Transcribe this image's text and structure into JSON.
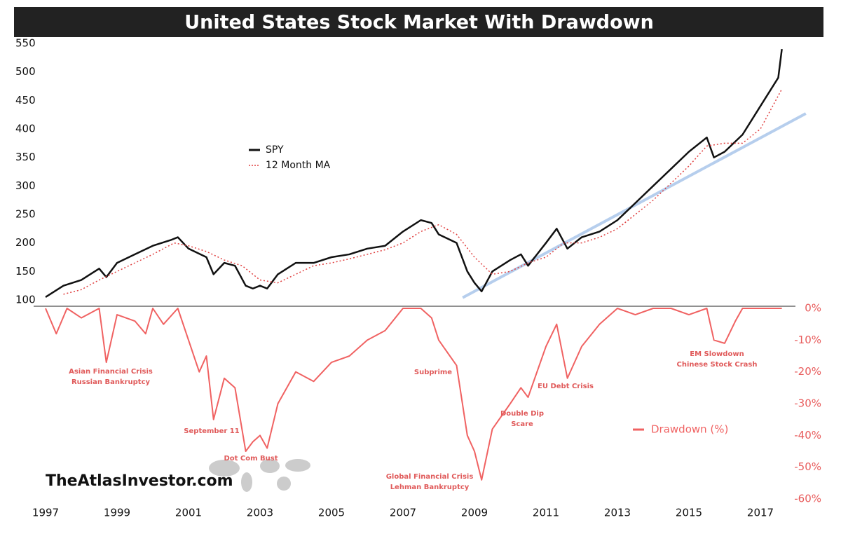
{
  "chart_data": {
    "type": "line",
    "title": "United States Stock Market With Drawdown",
    "xlim": [
      1997,
      2017.7
    ],
    "xticks": [
      1997,
      1999,
      2001,
      2003,
      2005,
      2007,
      2009,
      2011,
      2013,
      2015,
      2017
    ],
    "ylim": [
      100,
      550
    ],
    "yticks": [
      100,
      150,
      200,
      250,
      300,
      350,
      400,
      450,
      500,
      550
    ],
    "y2lim": [
      -60,
      0
    ],
    "y2ticks": [
      {
        "value": 0,
        "label": "0%"
      },
      {
        "value": -10,
        "label": "-10%"
      },
      {
        "value": -20,
        "label": "-20%"
      },
      {
        "value": -30,
        "label": "-30%"
      },
      {
        "value": -40,
        "label": "-40%"
      },
      {
        "value": -50,
        "label": "-50%"
      },
      {
        "value": -60,
        "label": "-60%"
      }
    ],
    "series": [
      {
        "name": "SPY",
        "color": "#111111",
        "x": [
          1997.0,
          1997.5,
          1998.0,
          1998.5,
          1998.7,
          1999.0,
          1999.5,
          2000.0,
          2000.5,
          2000.7,
          2001.0,
          2001.5,
          2001.7,
          2002.0,
          2002.3,
          2002.6,
          2002.8,
          2003.0,
          2003.2,
          2003.5,
          2004.0,
          2004.5,
          2005.0,
          2005.5,
          2006.0,
          2006.5,
          2007.0,
          2007.5,
          2007.8,
          2008.0,
          2008.5,
          2008.8,
          2009.0,
          2009.2,
          2009.5,
          2010.0,
          2010.3,
          2010.5,
          2011.0,
          2011.3,
          2011.6,
          2012.0,
          2012.5,
          2013.0,
          2013.5,
          2014.0,
          2014.5,
          2015.0,
          2015.5,
          2015.7,
          2016.0,
          2016.5,
          2017.0,
          2017.5,
          2017.6
        ],
        "values": [
          105,
          125,
          135,
          155,
          140,
          165,
          180,
          195,
          205,
          210,
          190,
          175,
          145,
          165,
          160,
          125,
          120,
          125,
          120,
          145,
          165,
          165,
          175,
          180,
          190,
          195,
          220,
          240,
          235,
          215,
          200,
          150,
          130,
          115,
          150,
          170,
          180,
          160,
          200,
          225,
          190,
          210,
          220,
          240,
          270,
          300,
          330,
          360,
          385,
          350,
          360,
          390,
          440,
          490,
          540
        ]
      },
      {
        "name": "12 Month MA",
        "color": "#e04040",
        "x": [
          1997.5,
          1998.0,
          1998.5,
          1999.0,
          1999.5,
          2000.0,
          2000.6,
          2001.0,
          2001.5,
          2002.0,
          2002.5,
          2003.0,
          2003.5,
          2004.0,
          2004.5,
          2005.0,
          2005.5,
          2006.0,
          2006.5,
          2007.0,
          2007.5,
          2008.0,
          2008.5,
          2009.0,
          2009.5,
          2010.0,
          2010.5,
          2011.0,
          2011.5,
          2012.0,
          2012.5,
          2013.0,
          2013.5,
          2014.0,
          2014.5,
          2015.0,
          2015.5,
          2016.0,
          2016.5,
          2017.0,
          2017.6
        ],
        "values": [
          110,
          118,
          135,
          150,
          165,
          180,
          200,
          195,
          185,
          170,
          160,
          135,
          130,
          145,
          160,
          165,
          172,
          180,
          188,
          200,
          220,
          232,
          215,
          175,
          145,
          150,
          165,
          175,
          200,
          200,
          210,
          225,
          250,
          275,
          305,
          335,
          370,
          375,
          375,
          400,
          470
        ]
      },
      {
        "name": "Drawdown (%)",
        "color": "#f06262",
        "axis": "y2",
        "x": [
          1997.0,
          1997.3,
          1997.6,
          1998.0,
          1998.5,
          1998.7,
          1999.0,
          1999.5,
          1999.8,
          2000.0,
          2000.3,
          2000.7,
          2001.0,
          2001.3,
          2001.5,
          2001.7,
          2002.0,
          2002.3,
          2002.6,
          2002.8,
          2003.0,
          2003.2,
          2003.5,
          2004.0,
          2004.5,
          2005.0,
          2005.5,
          2006.0,
          2006.5,
          2007.0,
          2007.5,
          2007.8,
          2008.0,
          2008.5,
          2008.8,
          2009.0,
          2009.2,
          2009.5,
          2010.0,
          2010.3,
          2010.5,
          2011.0,
          2011.3,
          2011.6,
          2012.0,
          2012.5,
          2013.0,
          2013.5,
          2014.0,
          2014.5,
          2015.0,
          2015.5,
          2015.7,
          2016.0,
          2016.3,
          2016.5,
          2017.0,
          2017.6
        ],
        "values": [
          0,
          -8,
          0,
          -3,
          0,
          -17,
          -2,
          -4,
          -8,
          0,
          -5,
          0,
          -10,
          -20,
          -15,
          -35,
          -22,
          -25,
          -45,
          -42,
          -40,
          -44,
          -30,
          -20,
          -23,
          -17,
          -15,
          -10,
          -7,
          0,
          0,
          -3,
          -10,
          -18,
          -40,
          -45,
          -54,
          -38,
          -30,
          -25,
          -28,
          -12,
          -5,
          -22,
          -12,
          -5,
          0,
          -2,
          0,
          0,
          -2,
          0,
          -10,
          -11,
          -4,
          0,
          0,
          0
        ]
      }
    ],
    "trendline": {
      "color": "#a9c6ea",
      "x": [
        2008.67,
        2018.27
      ],
      "values": [
        104,
        427
      ]
    },
    "annotations": [
      {
        "lines": [
          "Asian Financial Crisis",
          "Russian Bankruptcy"
        ]
      },
      {
        "lines": [
          "September 11"
        ]
      },
      {
        "lines": [
          "Dot Com Bust"
        ]
      },
      {
        "lines": [
          "Subprime"
        ]
      },
      {
        "lines": [
          "Global Financial Crisis",
          "Lehman Bankruptcy"
        ]
      },
      {
        "lines": [
          "Double Dip",
          "Scare"
        ]
      },
      {
        "lines": [
          "EU Debt Crisis"
        ]
      },
      {
        "lines": [
          "EM Slowdown",
          "Chinese Stock Crash"
        ]
      }
    ],
    "watermark": "TheAtlasInvestor.com"
  }
}
